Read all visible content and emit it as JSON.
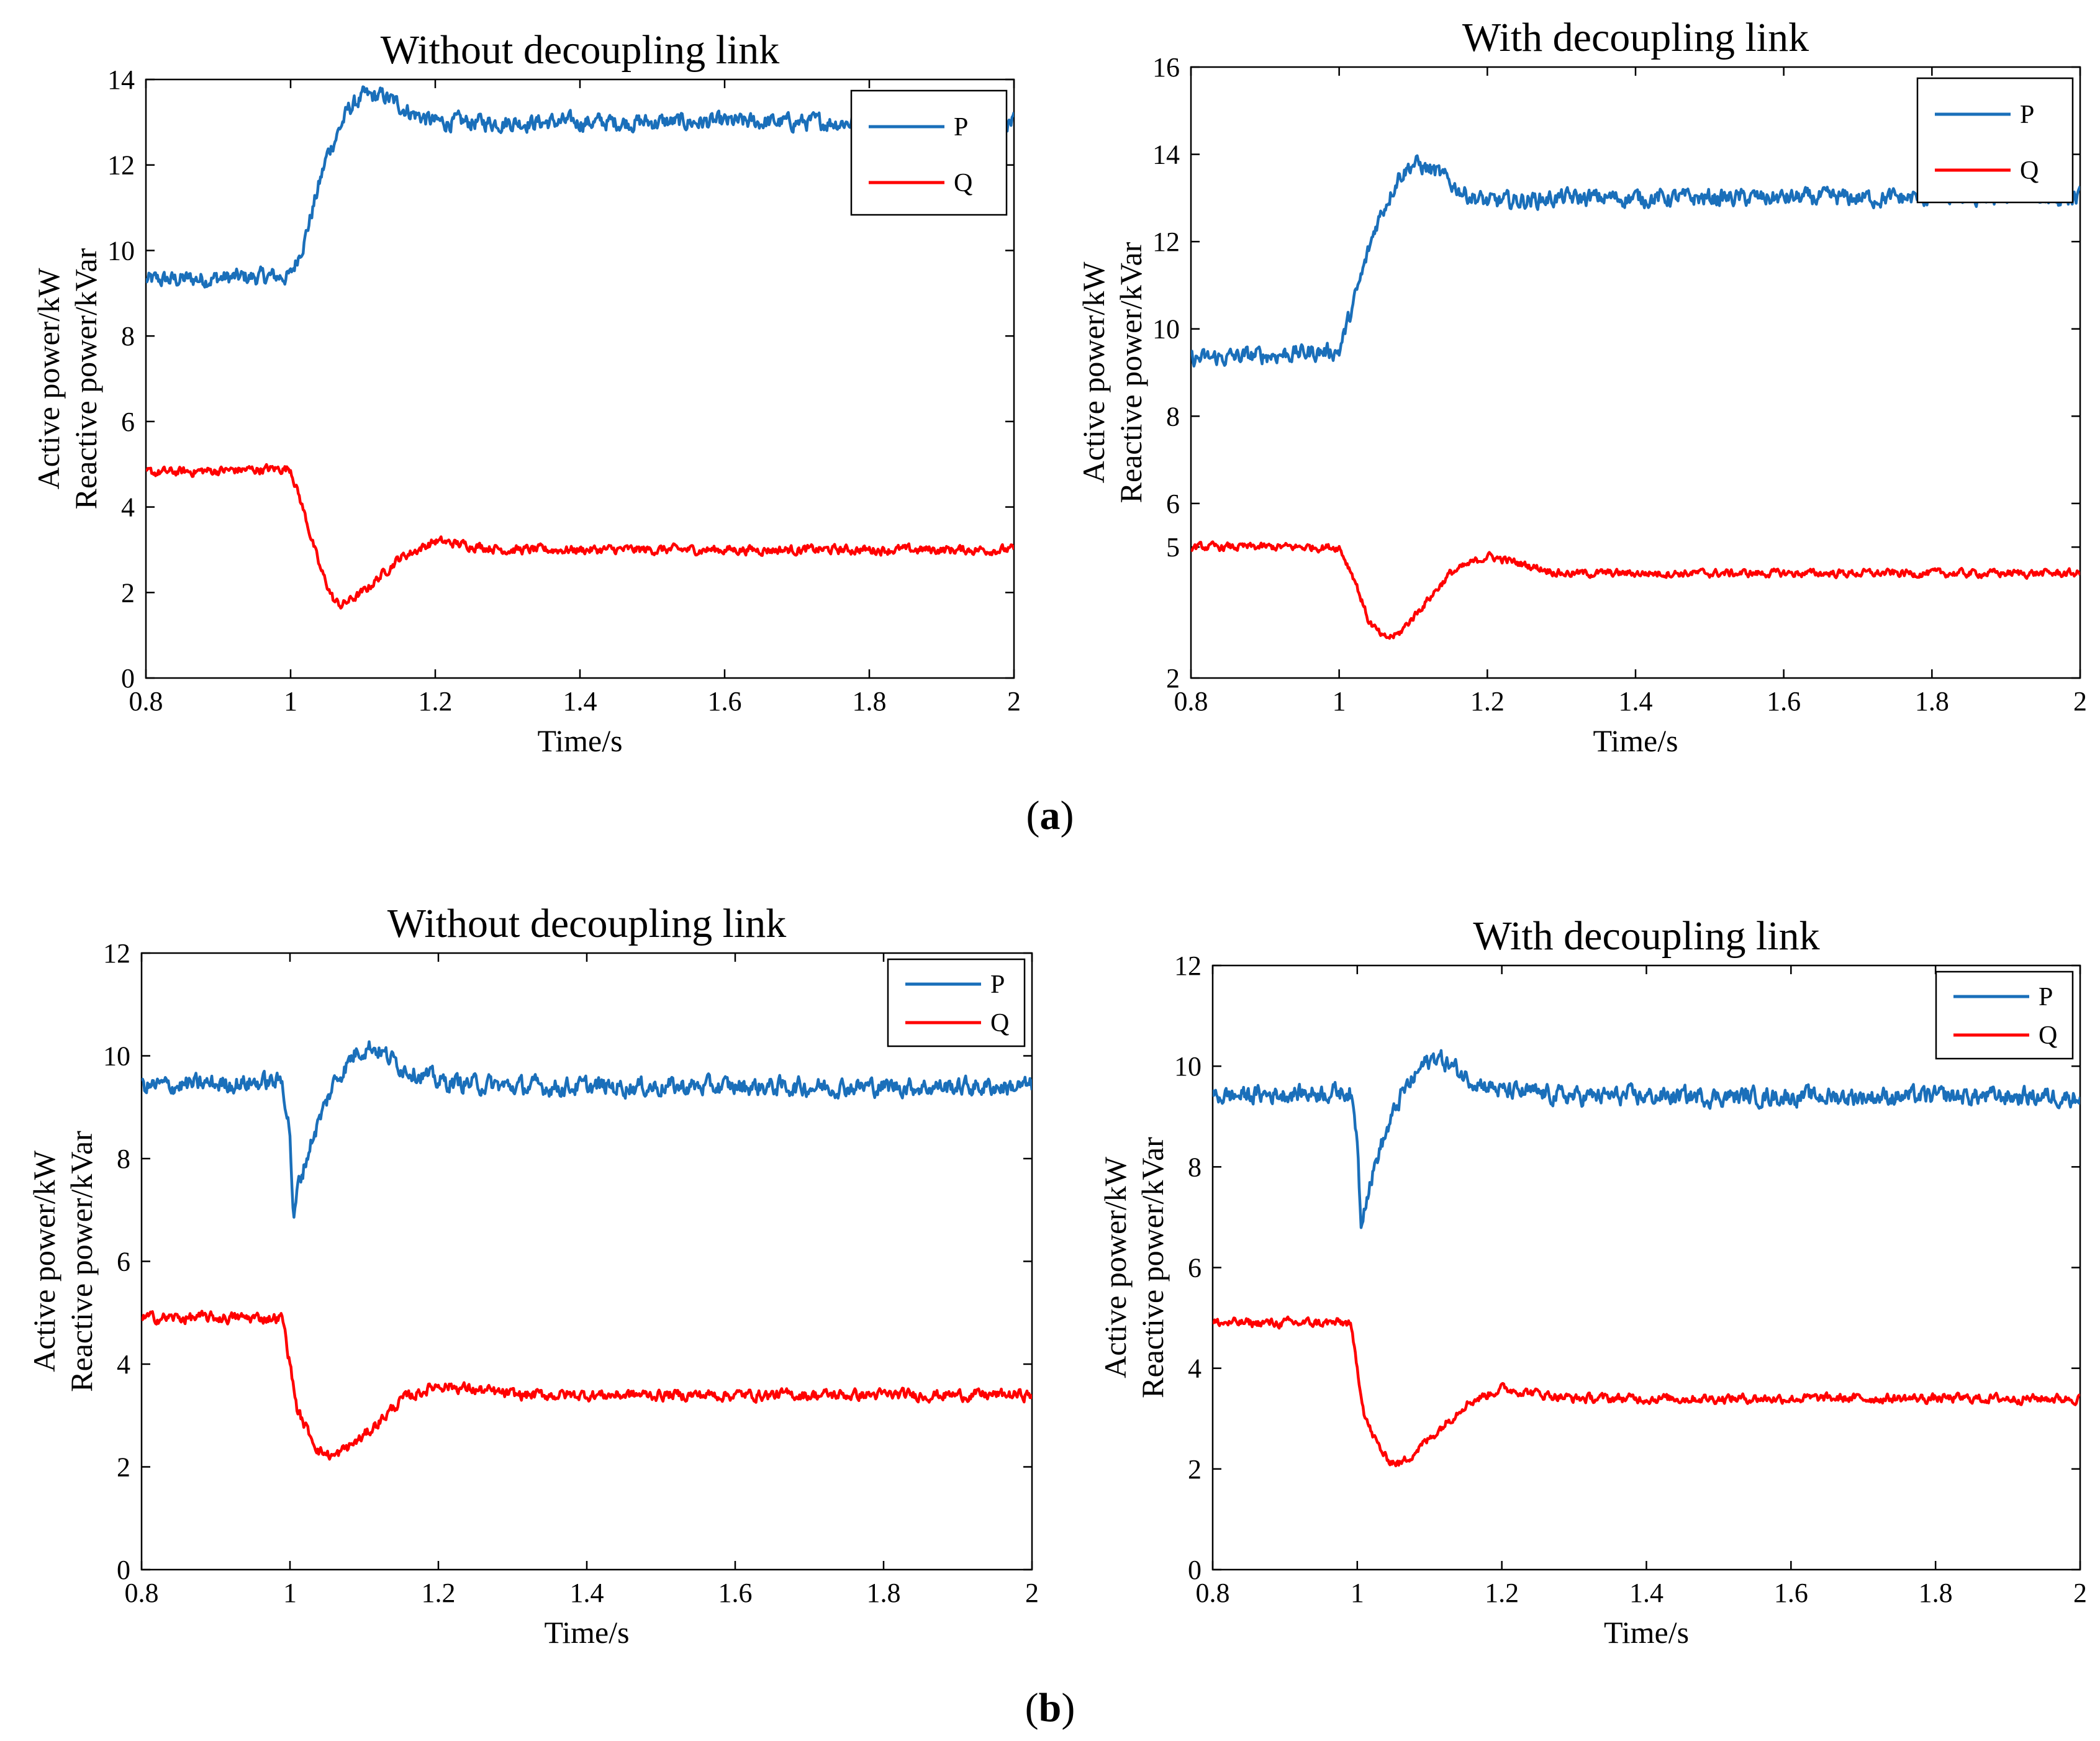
{
  "figure": {
    "panel_labels": [
      {
        "open": "(",
        "letter": "a",
        "close": ")"
      },
      {
        "open": "(",
        "letter": "b",
        "close": ")"
      }
    ]
  },
  "colors": {
    "P": "#1a6fba",
    "Q": "#ff0000"
  },
  "chart_data": [
    {
      "type": "line",
      "panel": "a",
      "title": "Without decoupling link",
      "xlabel": "Time/s",
      "ylabel_lines": [
        "Active power/kW",
        "Reactive power/kVar"
      ],
      "xlim": [
        0.8,
        2.0
      ],
      "ylim": [
        0,
        14
      ],
      "xticks": [
        0.8,
        1,
        1.2,
        1.4,
        1.6,
        1.8,
        2
      ],
      "yticks": [
        0,
        2,
        4,
        6,
        8,
        10,
        12,
        14
      ],
      "legend_pos": "top-right",
      "legend_loose": true,
      "series": [
        {
          "name": "P",
          "color": "#1a6fba",
          "noise": 0.22,
          "x": [
            0.8,
            1.0,
            1.02,
            1.05,
            1.08,
            1.1,
            1.13,
            1.17,
            1.2,
            1.3,
            2.0
          ],
          "y": [
            9.3,
            9.4,
            10.3,
            12.2,
            13.3,
            13.6,
            13.6,
            13.2,
            13.0,
            13.0,
            13.0
          ]
        },
        {
          "name": "Q",
          "color": "#ff0000",
          "noise": 0.12,
          "x": [
            0.8,
            1.0,
            1.02,
            1.04,
            1.06,
            1.07,
            1.1,
            1.15,
            1.2,
            1.3,
            2.0
          ],
          "y": [
            4.8,
            4.9,
            3.8,
            2.6,
            1.8,
            1.7,
            2.0,
            2.8,
            3.2,
            3.0,
            3.0
          ]
        }
      ]
    },
    {
      "type": "line",
      "panel": "a",
      "title": "With decoupling link",
      "xlabel": "Time/s",
      "ylabel_lines": [
        "Active power/kW",
        "Reactive power/kVar"
      ],
      "xlim": [
        0.8,
        2.0
      ],
      "ylim": [
        2,
        16
      ],
      "xticks": [
        0.8,
        1,
        1.2,
        1.4,
        1.6,
        1.8,
        2
      ],
      "yticks": [
        2,
        5,
        6,
        8,
        10,
        12,
        14,
        16
      ],
      "legend_pos": "top-right",
      "legend_loose": true,
      "series": [
        {
          "name": "P",
          "color": "#1a6fba",
          "noise": 0.22,
          "x": [
            0.8,
            1.0,
            1.02,
            1.05,
            1.08,
            1.1,
            1.13,
            1.17,
            1.2,
            1.3,
            2.0
          ],
          "y": [
            9.3,
            9.5,
            10.6,
            12.4,
            13.5,
            13.8,
            13.6,
            13.1,
            12.9,
            13.0,
            13.0
          ]
        },
        {
          "name": "Q",
          "color": "#ff0000",
          "noise": 0.1,
          "x": [
            0.8,
            1.0,
            1.02,
            1.04,
            1.06,
            1.08,
            1.11,
            1.15,
            1.2,
            1.3,
            2.0
          ],
          "y": [
            5.0,
            5.0,
            4.3,
            3.3,
            2.9,
            3.0,
            3.6,
            4.4,
            4.8,
            4.4,
            4.4
          ]
        }
      ]
    },
    {
      "type": "line",
      "panel": "b",
      "title": "Without decoupling link",
      "xlabel": "Time/s",
      "ylabel_lines": [
        "Active power/kW",
        "Reactive power/kVar"
      ],
      "xlim": [
        0.8,
        2.0
      ],
      "ylim": [
        0,
        12
      ],
      "xticks": [
        0.8,
        1,
        1.2,
        1.4,
        1.6,
        1.8,
        2
      ],
      "yticks": [
        0,
        2,
        4,
        6,
        8,
        10,
        12
      ],
      "legend_pos": "top-right",
      "legend_loose": false,
      "series": [
        {
          "name": "P",
          "color": "#1a6fba",
          "noise": 0.2,
          "x": [
            0.8,
            0.99,
            1.0,
            1.005,
            1.01,
            1.03,
            1.06,
            1.09,
            1.11,
            1.15,
            1.2,
            1.3,
            2.0
          ],
          "y": [
            9.4,
            9.5,
            8.5,
            6.7,
            7.4,
            8.4,
            9.5,
            10.1,
            10.2,
            9.8,
            9.5,
            9.4,
            9.4
          ]
        },
        {
          "name": "Q",
          "color": "#ff0000",
          "noise": 0.12,
          "x": [
            0.8,
            0.99,
            1.01,
            1.02,
            1.04,
            1.06,
            1.1,
            1.15,
            1.2,
            1.3,
            2.0
          ],
          "y": [
            4.9,
            4.9,
            3.1,
            2.8,
            2.3,
            2.2,
            2.6,
            3.3,
            3.6,
            3.4,
            3.4
          ]
        }
      ]
    },
    {
      "type": "line",
      "panel": "b",
      "title": "With decoupling link",
      "xlabel": "Time/s",
      "ylabel_lines": [
        "Active power/kW",
        "Reactive power/kVar"
      ],
      "xlim": [
        0.8,
        2.0
      ],
      "ylim": [
        0,
        12
      ],
      "xticks": [
        0.8,
        1,
        1.2,
        1.4,
        1.6,
        1.8,
        2
      ],
      "yticks": [
        0,
        2,
        4,
        6,
        8,
        10,
        12
      ],
      "legend_pos": "top-right",
      "legend_loose": false,
      "series": [
        {
          "name": "P",
          "color": "#1a6fba",
          "noise": 0.2,
          "x": [
            0.8,
            0.99,
            1.0,
            1.005,
            1.01,
            1.03,
            1.06,
            1.09,
            1.11,
            1.15,
            1.2,
            1.3,
            2.0
          ],
          "y": [
            9.4,
            9.5,
            8.6,
            6.9,
            7.3,
            8.3,
            9.4,
            10.0,
            10.2,
            9.8,
            9.5,
            9.4,
            9.4
          ]
        },
        {
          "name": "Q",
          "color": "#ff0000",
          "noise": 0.1,
          "x": [
            0.8,
            0.99,
            1.01,
            1.02,
            1.04,
            1.06,
            1.1,
            1.15,
            1.2,
            1.3,
            2.0
          ],
          "y": [
            4.9,
            4.9,
            3.1,
            2.7,
            2.2,
            2.1,
            2.6,
            3.3,
            3.6,
            3.4,
            3.4
          ]
        }
      ]
    }
  ]
}
